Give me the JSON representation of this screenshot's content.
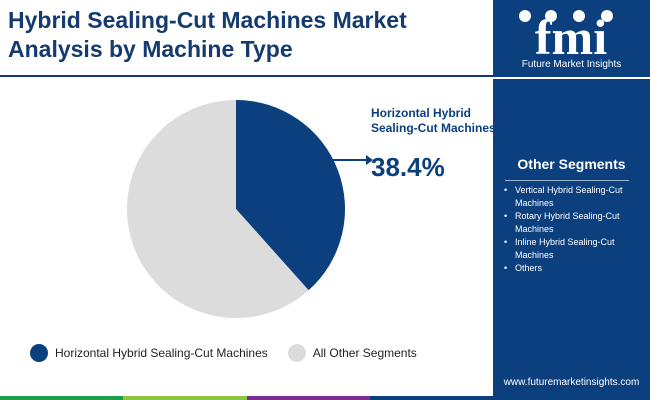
{
  "title": "Hybrid Sealing-Cut Machines Market Analysis by Machine Type",
  "brand": {
    "name": "Future Market Insights",
    "logo_text": "fmi",
    "website": "www.futuremarketinsights.com"
  },
  "colors": {
    "primary": "#0b3f7e",
    "secondary": "#dcdcdc",
    "title": "#153a6e",
    "bar": [
      "#1f9e4a",
      "#8bc43f",
      "#7b2e8e",
      "#0b3f7e"
    ]
  },
  "side_panel": {
    "heading": "Other Segments",
    "items": [
      "Vertical Hybrid Sealing-Cut Machines",
      "Rotary Hybrid Sealing-Cut Machines",
      "Inline Hybrid Sealing-Cut Machines",
      "Others"
    ]
  },
  "callout": {
    "label": "Horizontal Hybrid Sealing-Cut Machines",
    "value": "38.4%"
  },
  "chart_data": {
    "type": "pie",
    "title": "Hybrid Sealing-Cut Machines Market Analysis by Machine Type",
    "slices": [
      {
        "label": "Horizontal Hybrid Sealing-Cut Machines",
        "value": 38.4,
        "color": "#0b3f7e"
      },
      {
        "label": "All Other Segments",
        "value": 61.6,
        "color": "#dcdcdc"
      }
    ],
    "legend": [
      "Horizontal Hybrid Sealing-Cut Machines",
      "All Other Segments"
    ],
    "legend_position": "bottom"
  }
}
